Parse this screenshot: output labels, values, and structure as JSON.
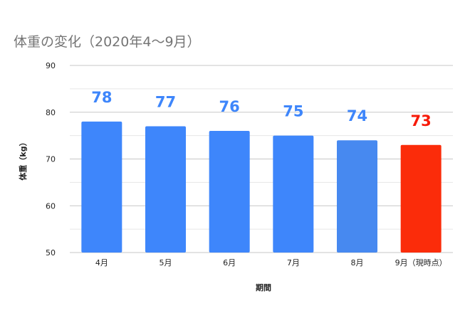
{
  "chart_data": {
    "type": "bar",
    "title": "体重の変化（2020年4〜9月）",
    "xlabel": "期間",
    "ylabel": "体重（kg）",
    "categories": [
      "4月",
      "5月",
      "6月",
      "7月",
      "8月",
      "9月（現時点）"
    ],
    "values": [
      78,
      77,
      76,
      75,
      74,
      73
    ],
    "data_labels": [
      "78",
      "77",
      "76",
      "75",
      "74",
      "73"
    ],
    "bar_colors": [
      "#3e86fb",
      "#3e86fb",
      "#3e86fb",
      "#3e86fb",
      "#4789f0",
      "#fb2c0a"
    ],
    "label_colors": [
      "#3e86fb",
      "#3e86fb",
      "#3e86fb",
      "#3e86fb",
      "#3e86fb",
      "#f71a08"
    ],
    "ylim": [
      50,
      90
    ],
    "y_ticks": [
      50,
      60,
      70,
      80,
      90
    ],
    "grid": true,
    "legend": "none"
  }
}
